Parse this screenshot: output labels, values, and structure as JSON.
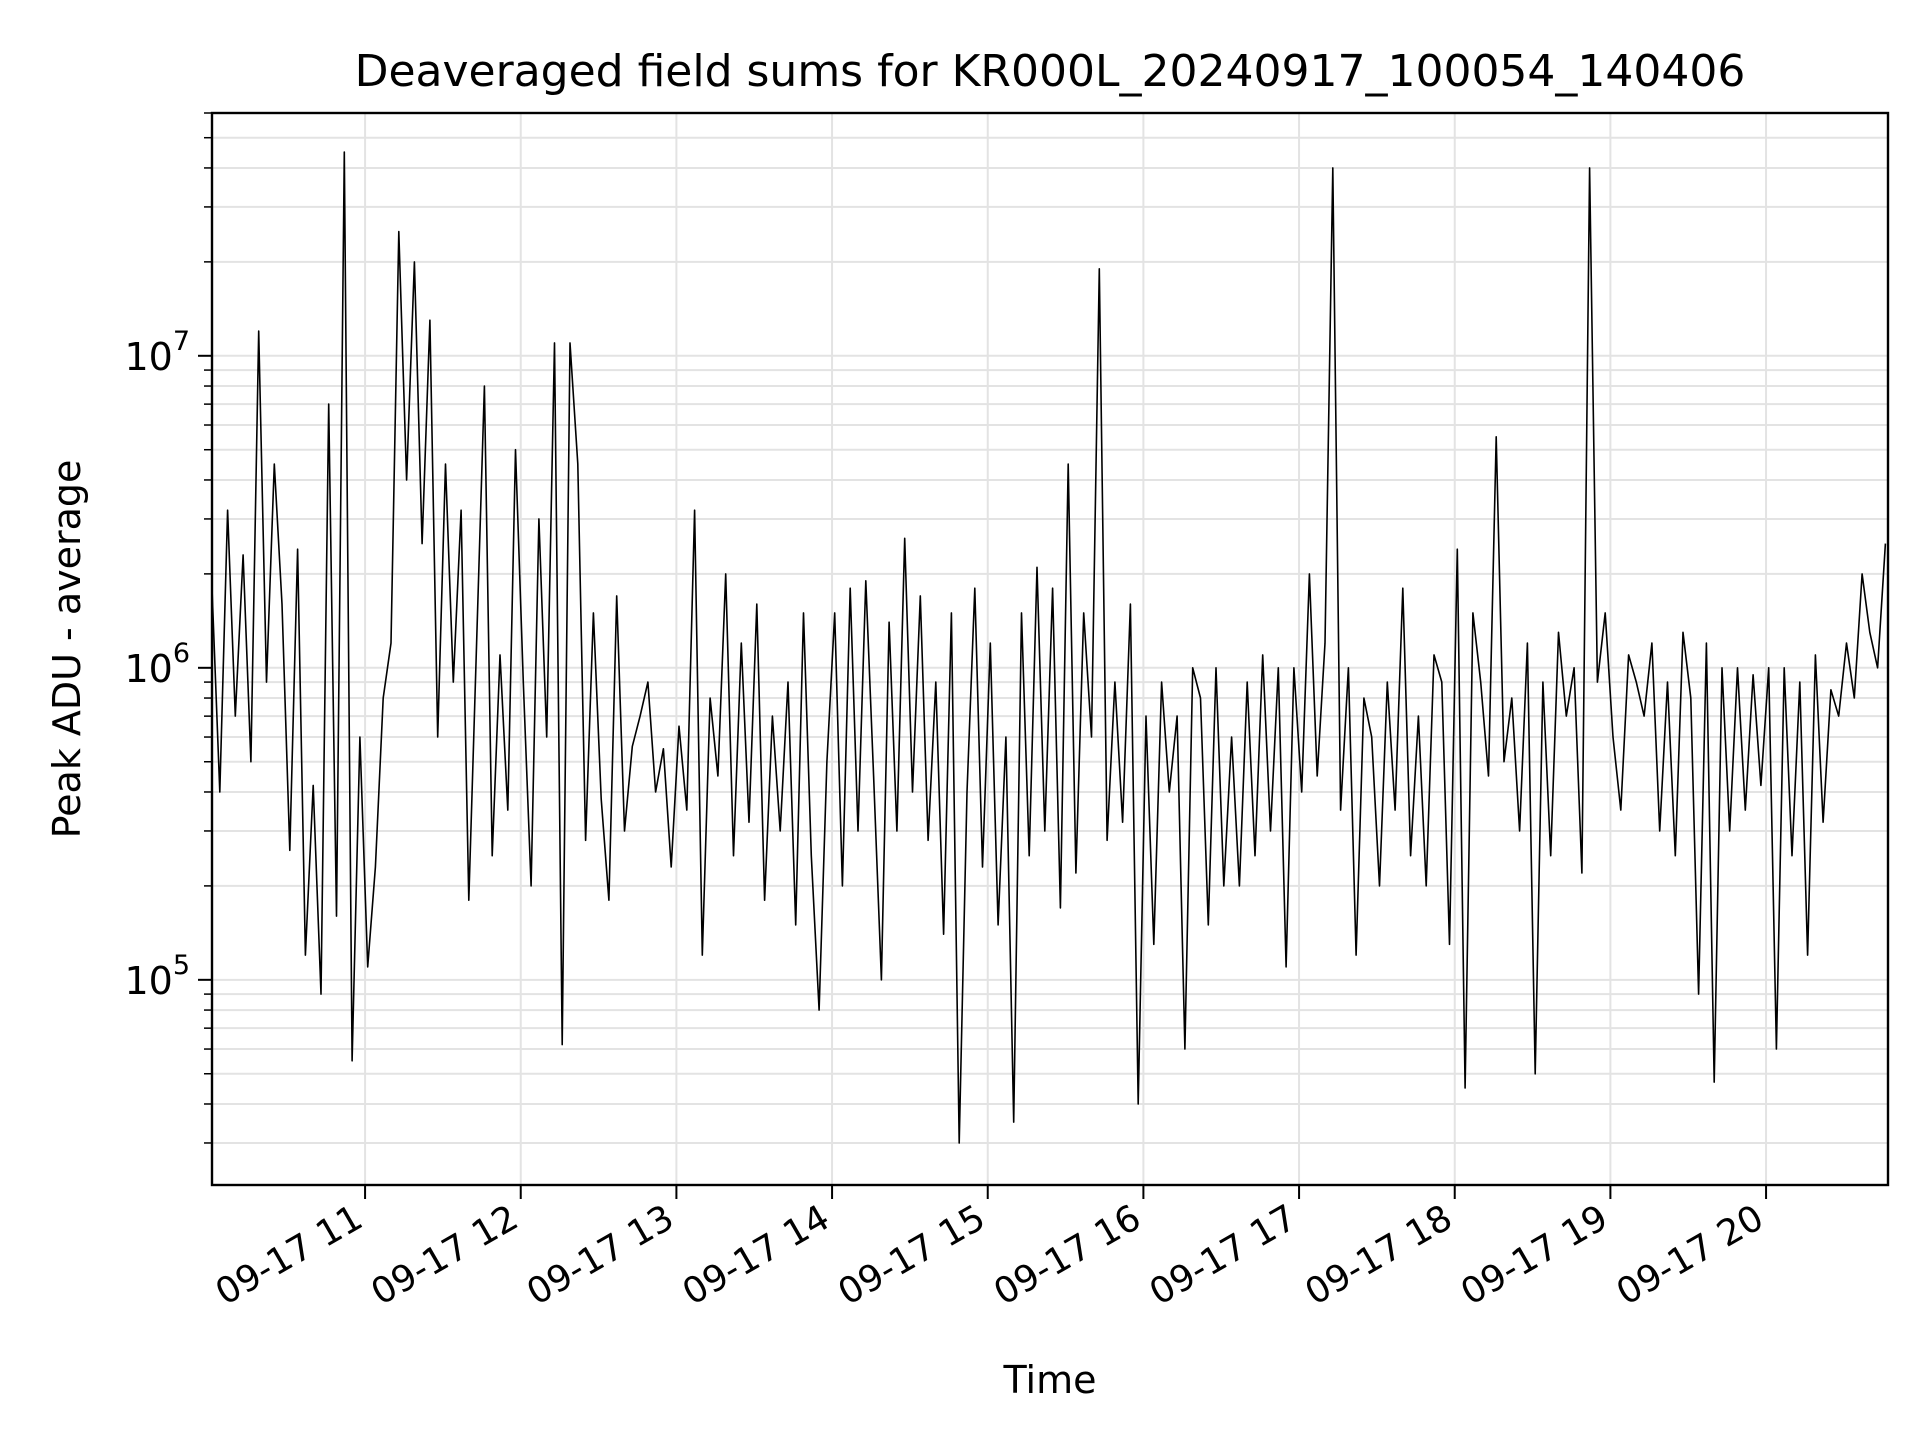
{
  "chart_data": {
    "type": "line",
    "title": "Deaveraged field sums for KR000L_20240917_100054_140406",
    "xlabel": "Time",
    "ylabel": "Peak ADU - average",
    "y_scale": "log",
    "grid": true,
    "legend": "none",
    "line_color": "#000000",
    "xlim": [
      "09-17 10:01",
      "09-17 20:47"
    ],
    "ylim": [
      22000,
      60000000
    ],
    "x_ticks": [
      "09-17 11",
      "09-17 12",
      "09-17 13",
      "09-17 14",
      "09-17 15",
      "09-17 16",
      "09-17 17",
      "09-17 18",
      "09-17 19",
      "09-17 20"
    ],
    "y_ticks": [
      {
        "value": 100000,
        "base": "10",
        "exp": "5"
      },
      {
        "value": 1000000,
        "base": "10",
        "exp": "6"
      },
      {
        "value": 10000000,
        "base": "10",
        "exp": "7"
      }
    ],
    "series": [
      {
        "x": [
          "09-17 10:01",
          "09-17 10:04",
          "09-17 10:07",
          "09-17 10:10",
          "09-17 10:13",
          "09-17 10:16",
          "09-17 10:19",
          "09-17 10:22",
          "09-17 10:25",
          "09-17 10:28",
          "09-17 10:31",
          "09-17 10:34",
          "09-17 10:37",
          "09-17 10:40",
          "09-17 10:43",
          "09-17 10:46",
          "09-17 10:49",
          "09-17 10:52",
          "09-17 10:55",
          "09-17 10:58",
          "09-17 11:01",
          "09-17 11:04",
          "09-17 11:07",
          "09-17 11:10",
          "09-17 11:13",
          "09-17 11:16",
          "09-17 11:19",
          "09-17 11:22",
          "09-17 11:25",
          "09-17 11:28",
          "09-17 11:31",
          "09-17 11:34",
          "09-17 11:37",
          "09-17 11:40",
          "09-17 11:43",
          "09-17 11:46",
          "09-17 11:49",
          "09-17 11:52",
          "09-17 11:55",
          "09-17 11:58",
          "09-17 12:01",
          "09-17 12:04",
          "09-17 12:07",
          "09-17 12:10",
          "09-17 12:13",
          "09-17 12:16",
          "09-17 12:19",
          "09-17 12:22",
          "09-17 12:25",
          "09-17 12:28",
          "09-17 12:31",
          "09-17 12:34",
          "09-17 12:37",
          "09-17 12:40",
          "09-17 12:43",
          "09-17 12:46",
          "09-17 12:49",
          "09-17 12:52",
          "09-17 12:55",
          "09-17 12:58",
          "09-17 13:01",
          "09-17 13:04",
          "09-17 13:07",
          "09-17 13:10",
          "09-17 13:13",
          "09-17 13:16",
          "09-17 13:19",
          "09-17 13:22",
          "09-17 13:25",
          "09-17 13:28",
          "09-17 13:31",
          "09-17 13:34",
          "09-17 13:37",
          "09-17 13:40",
          "09-17 13:43",
          "09-17 13:46",
          "09-17 13:49",
          "09-17 13:52",
          "09-17 13:55",
          "09-17 13:58",
          "09-17 14:01",
          "09-17 14:04",
          "09-17 14:07",
          "09-17 14:10",
          "09-17 14:13",
          "09-17 14:16",
          "09-17 14:19",
          "09-17 14:22",
          "09-17 14:25",
          "09-17 14:28",
          "09-17 14:31",
          "09-17 14:34",
          "09-17 14:37",
          "09-17 14:40",
          "09-17 14:43",
          "09-17 14:46",
          "09-17 14:49",
          "09-17 14:52",
          "09-17 14:55",
          "09-17 14:58",
          "09-17 15:01",
          "09-17 15:04",
          "09-17 15:07",
          "09-17 15:10",
          "09-17 15:13",
          "09-17 15:16",
          "09-17 15:19",
          "09-17 15:22",
          "09-17 15:25",
          "09-17 15:28",
          "09-17 15:31",
          "09-17 15:34",
          "09-17 15:37",
          "09-17 15:40",
          "09-17 15:43",
          "09-17 15:46",
          "09-17 15:49",
          "09-17 15:52",
          "09-17 15:55",
          "09-17 15:58",
          "09-17 16:01",
          "09-17 16:04",
          "09-17 16:07",
          "09-17 16:10",
          "09-17 16:13",
          "09-17 16:16",
          "09-17 16:19",
          "09-17 16:22",
          "09-17 16:25",
          "09-17 16:28",
          "09-17 16:31",
          "09-17 16:34",
          "09-17 16:37",
          "09-17 16:40",
          "09-17 16:43",
          "09-17 16:46",
          "09-17 16:49",
          "09-17 16:52",
          "09-17 16:55",
          "09-17 16:58",
          "09-17 17:01",
          "09-17 17:04",
          "09-17 17:07",
          "09-17 17:10",
          "09-17 17:13",
          "09-17 17:16",
          "09-17 17:19",
          "09-17 17:22",
          "09-17 17:25",
          "09-17 17:28",
          "09-17 17:31",
          "09-17 17:34",
          "09-17 17:37",
          "09-17 17:40",
          "09-17 17:43",
          "09-17 17:46",
          "09-17 17:49",
          "09-17 17:52",
          "09-17 17:55",
          "09-17 17:58",
          "09-17 18:01",
          "09-17 18:04",
          "09-17 18:07",
          "09-17 18:10",
          "09-17 18:13",
          "09-17 18:16",
          "09-17 18:19",
          "09-17 18:22",
          "09-17 18:25",
          "09-17 18:28",
          "09-17 18:31",
          "09-17 18:34",
          "09-17 18:37",
          "09-17 18:40",
          "09-17 18:43",
          "09-17 18:46",
          "09-17 18:49",
          "09-17 18:52",
          "09-17 18:55",
          "09-17 18:58",
          "09-17 19:01",
          "09-17 19:04",
          "09-17 19:07",
          "09-17 19:10",
          "09-17 19:13",
          "09-17 19:16",
          "09-17 19:19",
          "09-17 19:22",
          "09-17 19:25",
          "09-17 19:28",
          "09-17 19:31",
          "09-17 19:34",
          "09-17 19:37",
          "09-17 19:40",
          "09-17 19:43",
          "09-17 19:46",
          "09-17 19:49",
          "09-17 19:52",
          "09-17 19:55",
          "09-17 19:58",
          "09-17 20:01",
          "09-17 20:04",
          "09-17 20:07",
          "09-17 20:10",
          "09-17 20:13",
          "09-17 20:16",
          "09-17 20:19",
          "09-17 20:22",
          "09-17 20:25",
          "09-17 20:28",
          "09-17 20:31",
          "09-17 20:34",
          "09-17 20:37",
          "09-17 20:40",
          "09-17 20:43",
          "09-17 20:46"
        ],
        "y": [
          1800000,
          400000,
          3200000,
          700000,
          2300000,
          500000,
          12000000,
          900000,
          4500000,
          1600000,
          260000,
          2400000,
          120000,
          420000,
          90000,
          7000000,
          160000,
          45000000,
          55000,
          600000,
          110000,
          230000,
          800000,
          1200000,
          25000000,
          4000000,
          20000000,
          2500000,
          13000000,
          600000,
          4500000,
          900000,
          3200000,
          180000,
          1200000,
          8000000,
          250000,
          1100000,
          350000,
          5000000,
          900000,
          200000,
          3000000,
          600000,
          11000000,
          62000,
          11000000,
          4500000,
          280000,
          1500000,
          380000,
          180000,
          1700000,
          300000,
          560000,
          700000,
          900000,
          400000,
          550000,
          230000,
          650000,
          350000,
          3200000,
          120000,
          800000,
          450000,
          2000000,
          250000,
          1200000,
          320000,
          1600000,
          180000,
          700000,
          300000,
          900000,
          150000,
          1500000,
          250000,
          80000,
          500000,
          1500000,
          200000,
          1800000,
          300000,
          1900000,
          450000,
          100000,
          1400000,
          300000,
          2600000,
          400000,
          1700000,
          280000,
          900000,
          140000,
          1500000,
          30000,
          400000,
          1800000,
          230000,
          1200000,
          150000,
          600000,
          35000,
          1500000,
          250000,
          2100000,
          300000,
          1800000,
          170000,
          4500000,
          220000,
          1500000,
          600000,
          19000000,
          280000,
          900000,
          320000,
          1600000,
          40000,
          700000,
          130000,
          900000,
          400000,
          700000,
          60000,
          1000000,
          800000,
          150000,
          1000000,
          200000,
          600000,
          200000,
          900000,
          250000,
          1100000,
          300000,
          1000000,
          110000,
          1000000,
          400000,
          2000000,
          450000,
          1200000,
          40000000,
          350000,
          1000000,
          120000,
          800000,
          600000,
          200000,
          900000,
          350000,
          1800000,
          250000,
          700000,
          200000,
          1100000,
          900000,
          130000,
          2400000,
          45000,
          1500000,
          900000,
          450000,
          5500000,
          500000,
          800000,
          300000,
          1200000,
          50000,
          900000,
          250000,
          1300000,
          700000,
          1000000,
          220000,
          40000000,
          900000,
          1500000,
          600000,
          350000,
          1100000,
          900000,
          700000,
          1200000,
          300000,
          900000,
          250000,
          1300000,
          800000,
          90000,
          1200000,
          47000,
          1000000,
          300000,
          1000000,
          350000,
          950000,
          420000,
          1000000,
          60000,
          1000000,
          250000,
          900000,
          120000,
          1100000,
          320000,
          850000,
          700000,
          1200000,
          800000,
          2000000,
          1300000,
          1000000,
          2500000
        ]
      }
    ]
  }
}
